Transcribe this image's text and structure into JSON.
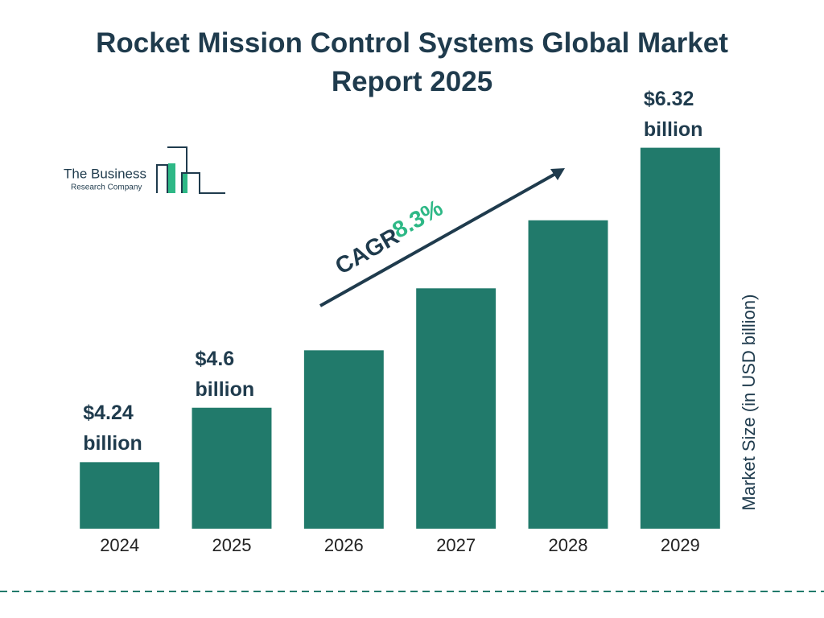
{
  "chart_data": {
    "type": "bar",
    "title": "Rocket Mission Control Systems Global Market Report 2025",
    "categories": [
      "2024",
      "2025",
      "2026",
      "2027",
      "2028",
      "2029"
    ],
    "values": [
      4.24,
      4.6,
      4.98,
      5.39,
      5.84,
      6.32
    ],
    "value_labels": [
      "$4.24 billion",
      "$4.6 billion",
      null,
      null,
      null,
      "$6.32 billion"
    ],
    "color": "#217a6b",
    "ylim": [
      3.8,
      6.6
    ],
    "y_label": "Market Size (in USD billion)",
    "cagr_label": "CAGR",
    "cagr_value": "8.3%",
    "logo": {
      "name": "The Business",
      "subname": "Research Company"
    }
  }
}
